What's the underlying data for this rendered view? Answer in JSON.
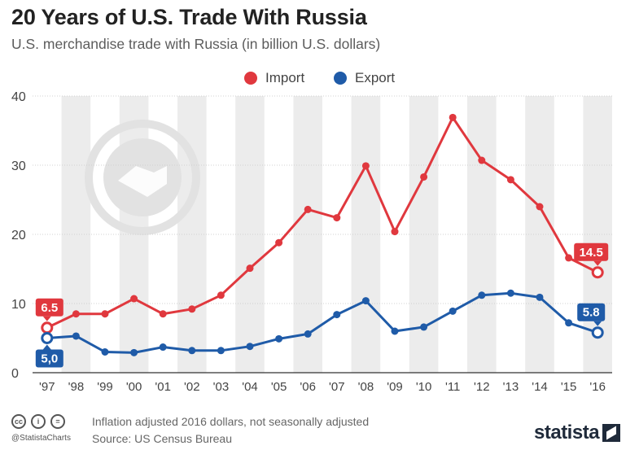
{
  "header": {
    "title": "20 Years of U.S. Trade With Russia",
    "subtitle": "U.S. merchandise trade with Russia (in billion U.S. dollars)"
  },
  "legend": {
    "import_label": "Import",
    "export_label": "Export"
  },
  "footer": {
    "note": "Inflation adjusted 2016 dollars, not seasonally adjusted",
    "source": "Source: US Census Bureau",
    "handle": "@StatistaCharts",
    "cc_glyphs": [
      "cc",
      "i",
      "="
    ],
    "brand": "statista"
  },
  "colors": {
    "import": "#e0383e",
    "export": "#1f5ba8",
    "stripe": "#ececec",
    "axis": "#333333",
    "gridline": "#d0d0d0",
    "text": "#222222"
  },
  "chart_data": {
    "type": "line",
    "x": [
      "'97",
      "'98",
      "'99",
      "'00",
      "'01",
      "'02",
      "'03",
      "'04",
      "'05",
      "'06",
      "'07",
      "'08",
      "'09",
      "'10",
      "'11",
      "'12",
      "'13",
      "'14",
      "'15",
      "'16"
    ],
    "series": [
      {
        "name": "Import",
        "color": "#e0383e",
        "values": [
          6.5,
          8.5,
          8.5,
          10.7,
          8.5,
          9.2,
          11.2,
          15.1,
          18.8,
          23.6,
          22.4,
          29.9,
          20.4,
          28.3,
          36.9,
          30.7,
          27.9,
          24.0,
          16.6,
          14.5
        ]
      },
      {
        "name": "Export",
        "color": "#1f5ba8",
        "values": [
          5.0,
          5.3,
          3.0,
          2.9,
          3.7,
          3.2,
          3.2,
          3.8,
          4.9,
          5.6,
          8.4,
          10.4,
          6.0,
          6.6,
          8.9,
          11.2,
          11.5,
          10.9,
          7.2,
          5.8
        ]
      }
    ],
    "callouts": [
      {
        "series": 0,
        "index": 0,
        "label": "6.5"
      },
      {
        "series": 0,
        "index": 19,
        "label": "14.5"
      },
      {
        "series": 1,
        "index": 0,
        "label": "5,0"
      },
      {
        "series": 1,
        "index": 19,
        "label": "5.8"
      }
    ],
    "yticks": [
      0,
      10,
      20,
      30,
      40
    ],
    "ylim": [
      0,
      40
    ],
    "grid": true,
    "alternating_stripes": true,
    "legend_position": "top-center"
  }
}
